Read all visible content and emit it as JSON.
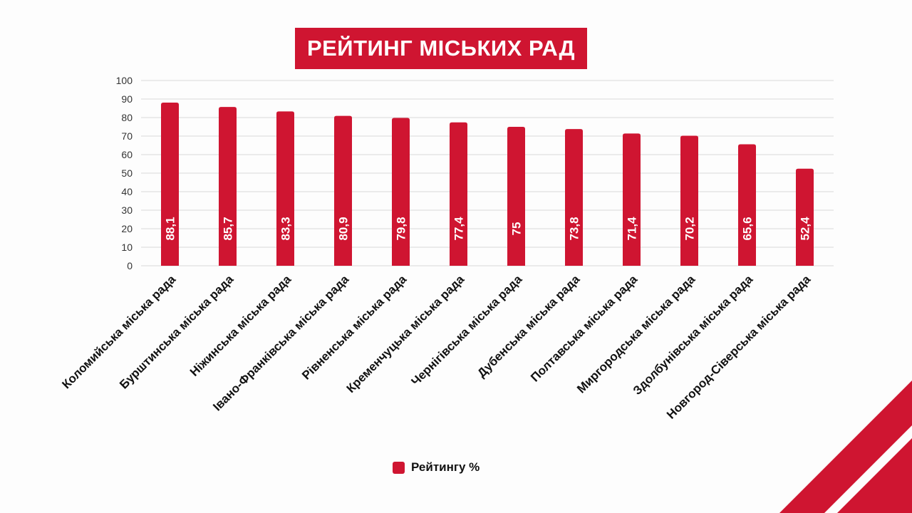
{
  "colors": {
    "accent": "#cf1531",
    "grid": "#d9d9d9",
    "axis_text": "#333333"
  },
  "title": "РЕЙТИНГ  МІСЬКИХ РАД",
  "chart_data": {
    "type": "bar",
    "categories": [
      "Коломийська міська рада",
      "Бурштинська міська рада",
      "Ніжинська міська рада",
      "Івано-Франківська міська рада",
      "Рівненська міська рада",
      "Кременчуцька міська рада",
      "Чернігівська міська рада",
      "Дубенська міська рада",
      "Полтавська міська рада",
      "Миргородська міська рада",
      "Здолбунівська міська рада",
      "Новгород-Сіверська міська рада"
    ],
    "series": [
      {
        "name": "Рейтингу %",
        "values": [
          88.1,
          85.7,
          83.3,
          80.9,
          79.8,
          77.4,
          75,
          73.8,
          71.4,
          70.2,
          65.6,
          52.4
        ],
        "labels": [
          "88,1",
          "85,7",
          "83,3",
          "80,9",
          "79,8",
          "77,4",
          "75",
          "73,8",
          "71,4",
          "70,2",
          "65,6",
          "52,4"
        ]
      }
    ],
    "ylim": [
      0,
      100
    ],
    "yticks": [
      0,
      10,
      20,
      30,
      40,
      50,
      60,
      70,
      80,
      90,
      100
    ],
    "grid": true,
    "legend_position": "bottom"
  }
}
